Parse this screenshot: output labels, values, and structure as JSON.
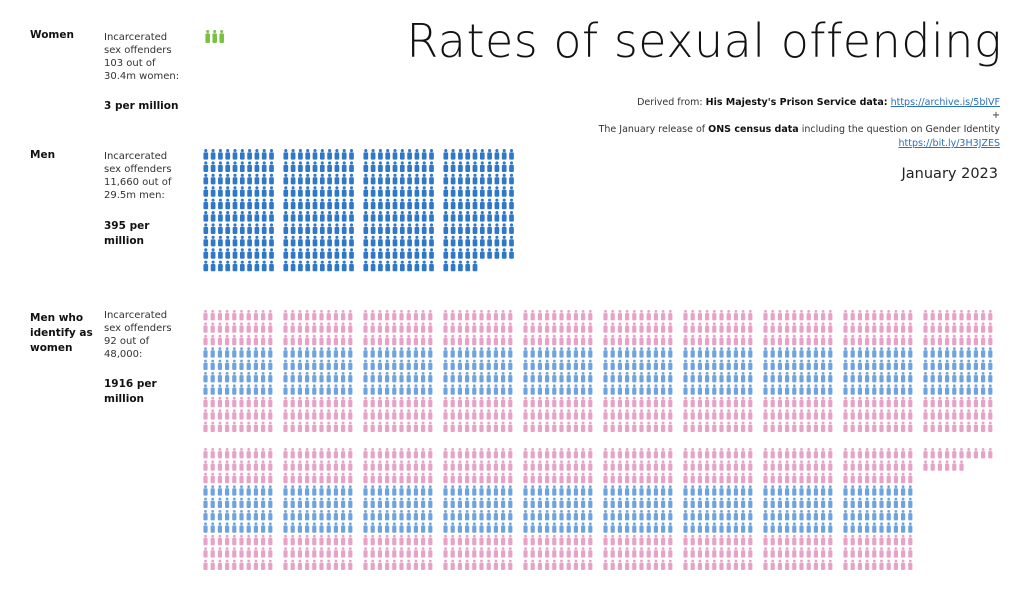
{
  "title": "Rates of sexual offending",
  "source": {
    "derived_prefix": "Derived from:",
    "prison_label": "His Majesty's Prison Service data:",
    "prison_link": "https://archive.is/5blVF",
    "plus": "+",
    "census_prefix": "The January release of",
    "census_bold": "ONS census data",
    "census_suffix": "including the question on Gender Identity",
    "census_link": "https://bit.ly/3H3JZES"
  },
  "date": "January 2023",
  "colors": {
    "women": "#7ac142",
    "men": "#2f78c9",
    "trans_pink": "#e6a3c7",
    "trans_blue": "#6fa3df"
  },
  "chart_data": {
    "type": "pictogram",
    "unit": "1 icon = 1 incarcerated sex offender per million",
    "groups": [
      {
        "label": "Women",
        "desc_lines": [
          "Incarcerated",
          "sex offenders",
          "103 out of",
          "30.4m women:"
        ],
        "rate_lines": [
          "3 per million"
        ],
        "value": 3
      },
      {
        "label": "Men",
        "desc_lines": [
          "Incarcerated",
          "sex offenders",
          "11,660 out of",
          "29.5m men:"
        ],
        "rate_lines": [
          "395 per",
          "million"
        ],
        "value": 395
      },
      {
        "label": "Men who identify as women",
        "label_lines": [
          "Men who",
          "identify as",
          "women"
        ],
        "desc_lines": [
          "Incarcerated",
          "sex offenders",
          "92 out of",
          "48,000:"
        ],
        "rate_lines": [
          "1916 per",
          "million"
        ],
        "value": 1916
      }
    ]
  }
}
